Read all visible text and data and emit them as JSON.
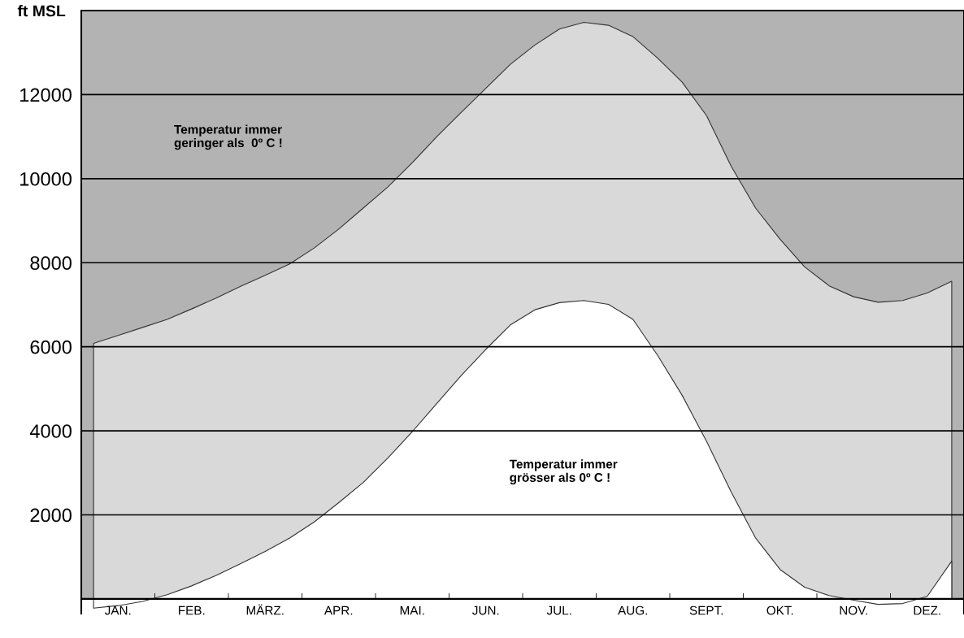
{
  "chart_data": {
    "type": "area",
    "ylabel": "ft MSL",
    "categories": [
      null,
      "JAN.",
      null,
      null,
      "FEB.",
      null,
      null,
      "MÄRZ.",
      null,
      null,
      "APR.",
      null,
      null,
      "MAI.",
      null,
      null,
      "JUN.",
      null,
      null,
      "JUL.",
      null,
      null,
      "AUG.",
      null,
      null,
      "SEPT.",
      null,
      null,
      "OKT.",
      null,
      null,
      "NOV.",
      null,
      null,
      "DEZ.",
      null
    ],
    "ylim": [
      -350,
      14000
    ],
    "yticks": [
      2000,
      4000,
      6000,
      8000,
      10000,
      12000
    ],
    "grid": "y",
    "series": [
      {
        "color": "#d9d9d9",
        "values": [
          6080,
          6270,
          6460,
          6650,
          6900,
          7160,
          7440,
          7700,
          7970,
          8350,
          8800,
          9300,
          9800,
          10380,
          11000,
          11580,
          12150,
          12720,
          13180,
          13560,
          13720,
          13650,
          13380,
          12870,
          12300,
          11500,
          10300,
          9300,
          8560,
          7900,
          7450,
          7190,
          7060,
          7100,
          7280,
          7560
        ]
      },
      {
        "color": "#ffffff",
        "values": [
          -220,
          -160,
          -60,
          100,
          310,
          560,
          840,
          1130,
          1450,
          1830,
          2290,
          2770,
          3350,
          3980,
          4650,
          5320,
          5940,
          6520,
          6880,
          7050,
          7100,
          7010,
          6650,
          5800,
          4850,
          3750,
          2550,
          1450,
          700,
          280,
          80,
          -30,
          -130,
          -110,
          60,
          900
        ]
      }
    ],
    "annotations": [
      "Temperatur immer\ngeringer als  0º C !",
      "Temperatur immer\ngrösser als 0º C !"
    ]
  }
}
